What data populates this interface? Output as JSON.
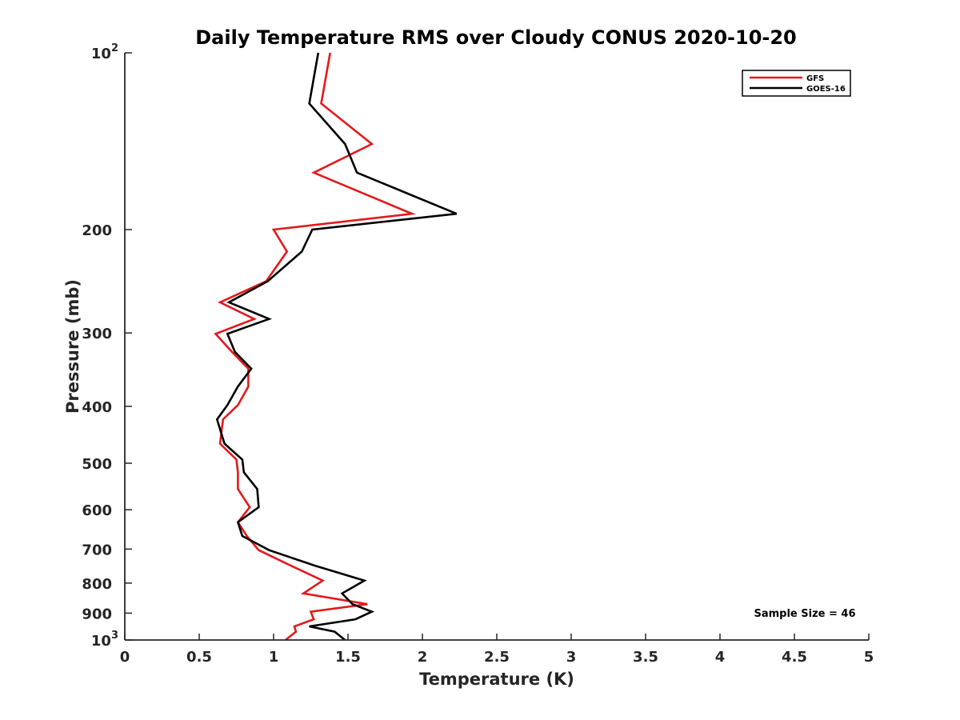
{
  "chart_data": {
    "type": "line",
    "title": "Daily Temperature RMS over Cloudy CONUS 2020-10-20",
    "xlabel": "Temperature (K)",
    "ylabel": "Pressure (mb)",
    "xlim": [
      0,
      5
    ],
    "ylim": [
      100,
      1000
    ],
    "y_scale": "log",
    "y_reversed": true,
    "x_ticks": [
      "0",
      "0.5",
      "1",
      "1.5",
      "2",
      "2.5",
      "3",
      "3.5",
      "4",
      "4.5",
      "5"
    ],
    "y_ticks": [
      {
        "value": 100,
        "base": "10",
        "exp": "2"
      },
      {
        "value": 200,
        "label": "200"
      },
      {
        "value": 300,
        "label": "300"
      },
      {
        "value": 400,
        "label": "400"
      },
      {
        "value": 500,
        "label": "500"
      },
      {
        "value": 600,
        "label": "600"
      },
      {
        "value": 700,
        "label": "700"
      },
      {
        "value": 800,
        "label": "800"
      },
      {
        "value": 900,
        "label": "900"
      },
      {
        "value": 1000,
        "base": "10",
        "exp": "3"
      }
    ],
    "grid": false,
    "legend_position": "top-right",
    "annotation": "Sample Size = 46",
    "series": [
      {
        "name": "GFS",
        "color": "#e31a1c",
        "points": [
          [
            1.38,
            100
          ],
          [
            1.32,
            122
          ],
          [
            1.66,
            143
          ],
          [
            1.27,
            160
          ],
          [
            1.93,
            188
          ],
          [
            1.0,
            200
          ],
          [
            1.09,
            218
          ],
          [
            0.95,
            245
          ],
          [
            0.64,
            266
          ],
          [
            0.87,
            284
          ],
          [
            0.61,
            301
          ],
          [
            0.72,
            323
          ],
          [
            0.83,
            345
          ],
          [
            0.83,
            370
          ],
          [
            0.76,
            398
          ],
          [
            0.66,
            421
          ],
          [
            0.64,
            463
          ],
          [
            0.75,
            493
          ],
          [
            0.76,
            518
          ],
          [
            0.76,
            553
          ],
          [
            0.84,
            594
          ],
          [
            0.76,
            630
          ],
          [
            0.82,
            665
          ],
          [
            0.9,
            703
          ],
          [
            1.11,
            746
          ],
          [
            1.33,
            792
          ],
          [
            1.2,
            833
          ],
          [
            1.63,
            869
          ],
          [
            1.25,
            895
          ],
          [
            1.27,
            922
          ],
          [
            1.14,
            948
          ],
          [
            1.15,
            968
          ],
          [
            1.08,
            1000
          ]
        ]
      },
      {
        "name": "GOES-16",
        "color": "#000000",
        "points": [
          [
            1.3,
            100
          ],
          [
            1.24,
            122
          ],
          [
            1.48,
            143
          ],
          [
            1.56,
            160
          ],
          [
            2.23,
            188
          ],
          [
            1.26,
            200
          ],
          [
            1.19,
            218
          ],
          [
            0.96,
            245
          ],
          [
            0.7,
            266
          ],
          [
            0.97,
            284
          ],
          [
            0.69,
            301
          ],
          [
            0.74,
            323
          ],
          [
            0.85,
            345
          ],
          [
            0.76,
            370
          ],
          [
            0.69,
            398
          ],
          [
            0.62,
            421
          ],
          [
            0.67,
            463
          ],
          [
            0.79,
            493
          ],
          [
            0.8,
            518
          ],
          [
            0.89,
            553
          ],
          [
            0.9,
            594
          ],
          [
            0.76,
            630
          ],
          [
            0.79,
            665
          ],
          [
            0.97,
            703
          ],
          [
            1.27,
            746
          ],
          [
            1.61,
            792
          ],
          [
            1.46,
            833
          ],
          [
            1.53,
            869
          ],
          [
            1.66,
            895
          ],
          [
            1.55,
            922
          ],
          [
            1.24,
            948
          ],
          [
            1.41,
            968
          ],
          [
            1.48,
            1000
          ]
        ]
      }
    ]
  }
}
